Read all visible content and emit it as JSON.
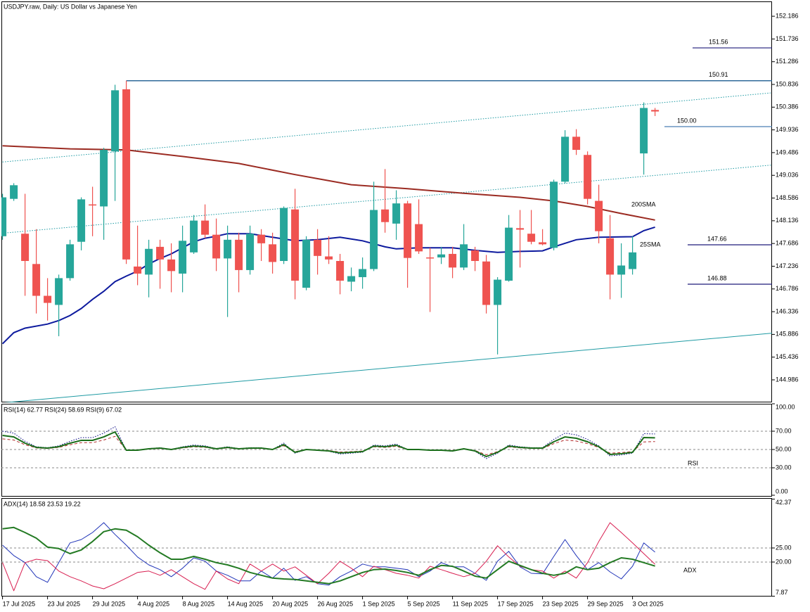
{
  "chart_data": [
    {
      "type": "candlestick",
      "title": "USDJPY.raw, Daily:  US Dollar vs Japanese Yen",
      "categories": [
        "17 Jul 2025",
        null,
        null,
        null,
        "23 Jul 2025",
        null,
        null,
        null,
        "29 Jul 2025",
        null,
        null,
        null,
        "4 Aug 2025",
        null,
        null,
        null,
        "8 Aug 2025",
        null,
        null,
        null,
        "14 Aug 2025",
        null,
        null,
        null,
        "20 Aug 2025",
        null,
        null,
        null,
        "26 Aug 2025",
        null,
        null,
        null,
        "1 Sep 2025",
        null,
        null,
        null,
        "5 Sep 2025",
        null,
        null,
        null,
        "11 Sep 2025",
        null,
        null,
        null,
        "17 Sep 2025",
        null,
        null,
        null,
        "23 Sep 2025",
        null,
        null,
        null,
        "29 Sep 2025",
        null,
        null,
        null,
        "3 Oct 2025",
        null,
        null
      ],
      "xlim": [
        -0.1,
        68.4
      ],
      "ylim": [
        144.54,
        152.48
      ],
      "yticks": [
        152.186,
        151.736,
        151.286,
        150.836,
        150.386,
        149.936,
        149.486,
        149.036,
        148.586,
        148.136,
        147.686,
        147.236,
        146.786,
        146.336,
        145.886,
        145.436,
        144.986
      ],
      "up_color": "#26a69a",
      "down_color": "#ef5350",
      "open": [
        147.83,
        148.57,
        147.88,
        147.28,
        146.65,
        146.47,
        147.0,
        147.72,
        148.46,
        148.42,
        149.51,
        150.74,
        147.23,
        147.07,
        147.62,
        147.37,
        147.09,
        147.51,
        148.14,
        147.86,
        147.39,
        147.76,
        147.16,
        147.86,
        147.67,
        147.34,
        148.36,
        146.81,
        147.76,
        147.43,
        147.34,
        146.93,
        147.02,
        147.18,
        148.36,
        148.08,
        148.48,
        148.07,
        147.41,
        147.41,
        147.48,
        147.21,
        147.55,
        147.33,
        146.47,
        146.95,
        147.99,
        147.88,
        147.71,
        147.6,
        148.91,
        149.8,
        149.44,
        148.53,
        147.79,
        147.07,
        147.18,
        149.47,
        150.33
      ],
      "high": [
        148.67,
        148.88,
        148.67,
        147.97,
        147.0,
        147.07,
        147.76,
        148.6,
        148.81,
        149.58,
        150.83,
        150.91,
        148.04,
        147.76,
        147.76,
        147.69,
        148.04,
        148.25,
        148.46,
        148.18,
        148.04,
        147.9,
        148.04,
        147.97,
        147.9,
        148.42,
        148.77,
        147.83,
        147.97,
        147.83,
        147.48,
        147.21,
        147.41,
        148.91,
        149.16,
        148.74,
        148.53,
        148.56,
        147.6,
        147.62,
        147.62,
        148.07,
        147.62,
        147.46,
        147.02,
        148.25,
        148.35,
        148.35,
        147.97,
        148.95,
        149.93,
        149.95,
        149.51,
        148.85,
        148.25,
        147.69,
        147.83,
        150.48,
        150.37
      ],
      "low": [
        147.76,
        148.53,
        146.65,
        146.3,
        146.16,
        145.85,
        146.95,
        147.55,
        147.83,
        147.76,
        148.53,
        147.28,
        146.86,
        146.62,
        146.79,
        146.72,
        146.72,
        147.48,
        147.79,
        147.14,
        146.23,
        146.72,
        147.07,
        147.34,
        147.09,
        147.28,
        146.58,
        146.76,
        147.07,
        147.28,
        146.68,
        146.74,
        146.79,
        147.14,
        147.9,
        147.76,
        146.81,
        147.48,
        146.33,
        147.28,
        147.0,
        147.16,
        147.14,
        146.3,
        145.49,
        146.93,
        147.21,
        147.67,
        147.65,
        147.55,
        148.88,
        149.44,
        148.46,
        147.69,
        146.58,
        146.61,
        147.07,
        149.05,
        150.21
      ],
      "close": [
        148.6,
        148.84,
        147.34,
        146.65,
        146.51,
        147.0,
        147.67,
        148.56,
        148.45,
        149.54,
        150.72,
        147.37,
        147.09,
        147.58,
        147.37,
        147.14,
        147.74,
        148.14,
        147.86,
        147.39,
        147.76,
        147.16,
        147.88,
        147.69,
        147.32,
        148.39,
        146.95,
        147.76,
        147.44,
        147.37,
        146.95,
        147.04,
        147.18,
        148.35,
        148.11,
        148.48,
        147.4,
        147.53,
        147.4,
        147.47,
        147.21,
        147.67,
        147.34,
        146.47,
        146.97,
        148.0,
        147.96,
        147.72,
        147.67,
        148.91,
        149.8,
        149.54,
        148.57,
        147.93,
        147.07,
        147.25,
        147.51,
        150.37,
        150.3
      ],
      "overlays": [
        {
          "name": "200SMA",
          "color": "#9b2b22",
          "x": [
            0,
            6,
            11,
            16,
            21,
            26,
            31,
            36,
            41,
            46,
            49,
            52,
            55,
            58
          ],
          "values": [
            149.62,
            149.56,
            149.54,
            149.41,
            149.27,
            149.05,
            148.85,
            148.77,
            148.68,
            148.6,
            148.53,
            148.42,
            148.28,
            148.15
          ]
        },
        {
          "name": "25SMA",
          "color": "#0d1a9e",
          "x": [
            0,
            1,
            2,
            4,
            5,
            6,
            7,
            8,
            9,
            10,
            11,
            12,
            13,
            14,
            15,
            16,
            17,
            18,
            19,
            20,
            22,
            24,
            26,
            28,
            30,
            32,
            34,
            35,
            37,
            40,
            42,
            44,
            46,
            48,
            49,
            51,
            53,
            56,
            57,
            58
          ],
          "values": [
            145.7,
            145.92,
            146.01,
            146.09,
            146.16,
            146.26,
            146.4,
            146.58,
            146.74,
            146.93,
            147.04,
            147.14,
            147.28,
            147.39,
            147.48,
            147.6,
            147.72,
            147.79,
            147.83,
            147.88,
            147.88,
            147.81,
            147.74,
            147.76,
            147.81,
            147.74,
            147.62,
            147.58,
            147.6,
            147.6,
            147.55,
            147.51,
            147.53,
            147.54,
            147.62,
            147.76,
            147.81,
            147.82,
            147.94,
            148.01
          ]
        }
      ],
      "trendlines": [
        {
          "style": "dotted",
          "color": "#1e9aa3",
          "x": [
            0,
            68.4
          ],
          "values": [
            149.3,
            150.67
          ]
        },
        {
          "style": "dotted",
          "color": "#1e9aa3",
          "x": [
            0,
            68.4
          ],
          "values": [
            147.89,
            149.24
          ]
        },
        {
          "style": "solid",
          "color": "#1e9aa3",
          "x": [
            0,
            68.4
          ],
          "values": [
            144.53,
            145.91
          ]
        }
      ],
      "levels": [
        151.56,
        150.91,
        {
          "value": 150,
          "label": "150.00"
        },
        147.66,
        146.88
      ],
      "level_colors": [
        "#1f1a7a",
        "#2f6a9a",
        "#4a7fb5",
        "#1f1a7a",
        "#1f1a7a"
      ]
    },
    {
      "type": "line",
      "title": "RSI(14) 62.77 RSI(24) 58.69 RSI(9) 67.02",
      "label": "RSI",
      "label_color": "#2e7d32",
      "ylim": [
        0,
        100
      ],
      "yticks": [
        {
          "value": 100,
          "label": "100.00"
        },
        {
          "value": 70,
          "label": "70.00"
        },
        {
          "value": 50,
          "label": "50.00"
        },
        {
          "value": 30,
          "label": "30.00"
        },
        {
          "value": 0,
          "label": "0.00"
        }
      ],
      "grid": true,
      "series": [
        {
          "color": "#b22a2a",
          "style": "dashed",
          "values": [
            61.6,
            60.4,
            55.2,
            51.7,
            51.1,
            52.3,
            55.2,
            57.5,
            57.5,
            60.4,
            64.4,
            49.4,
            49.4,
            50.6,
            51.1,
            50.0,
            51.7,
            52.9,
            52.3,
            50.6,
            51.7,
            50.6,
            51.1,
            51.1,
            50.0,
            54.1,
            47.7,
            50.0,
            49.4,
            48.9,
            47.2,
            47.7,
            48.3,
            52.9,
            52.3,
            53.5,
            50.0,
            50.0,
            49.4,
            49.4,
            48.9,
            50.6,
            48.9,
            44.2,
            47.7,
            52.9,
            51.7,
            51.1,
            51.1,
            56.4,
            60.4,
            59.2,
            56.4,
            52.3,
            46.0,
            46.6,
            47.7,
            58.3,
            58.69
          ]
        },
        {
          "color": "#000080",
          "style": "dotted",
          "values": [
            70.0,
            67.9,
            59.0,
            53.0,
            52.0,
            54.0,
            59.0,
            63.0,
            63.0,
            67.9,
            75.0,
            49.0,
            49.0,
            51.0,
            52.0,
            50.0,
            53.0,
            54.9,
            54.0,
            51.0,
            53.0,
            51.0,
            52.0,
            52.0,
            50.0,
            57.0,
            46.0,
            50.0,
            49.0,
            48.1,
            45.1,
            46.0,
            47.0,
            54.9,
            54.0,
            56.0,
            50.0,
            50.0,
            49.0,
            49.0,
            48.1,
            51.0,
            48.1,
            40.0,
            46.0,
            54.9,
            53.0,
            52.0,
            52.0,
            61.1,
            67.9,
            66.0,
            61.1,
            54.0,
            43.0,
            44.0,
            46.0,
            67.3,
            67.02
          ]
        },
        {
          "color": "#1b6e1b",
          "style": "bold",
          "values": [
            65.4,
            63.8,
            56.9,
            52.3,
            51.5,
            53.1,
            56.9,
            60.0,
            60.0,
            63.8,
            69.2,
            49.2,
            49.2,
            50.8,
            51.5,
            50.0,
            52.3,
            53.8,
            53.1,
            50.8,
            52.3,
            50.8,
            51.5,
            51.5,
            50.0,
            55.4,
            46.9,
            50.0,
            49.2,
            48.5,
            46.2,
            46.9,
            47.7,
            53.8,
            53.1,
            54.6,
            50.0,
            50.0,
            49.2,
            49.2,
            48.5,
            50.8,
            48.5,
            42.3,
            46.9,
            53.8,
            52.3,
            51.5,
            51.5,
            58.5,
            63.8,
            62.3,
            58.5,
            53.1,
            44.6,
            45.4,
            46.9,
            63.1,
            62.77
          ]
        }
      ]
    },
    {
      "type": "line",
      "title": "ADX(14) 18.58 23.53 19.22",
      "label": "ADX",
      "label_color": "#2e7d32",
      "ylim": [
        7.87,
        42.37
      ],
      "yticks": [
        42.37,
        {
          "value": 25,
          "label": "25.00"
        },
        {
          "value": 20,
          "label": "20.00"
        },
        7.87
      ],
      "grid": true,
      "series": [
        {
          "color": "#2034b8",
          "style": "solid",
          "values": [
            26.0,
            22.3,
            19.8,
            14.8,
            12.8,
            19.8,
            26.8,
            28.0,
            30.5,
            34.0,
            29.8,
            26.0,
            21.8,
            19.0,
            17.3,
            14.8,
            17.8,
            21.5,
            20.3,
            16.8,
            15.3,
            13.3,
            13.3,
            16.8,
            14.3,
            17.8,
            13.5,
            14.8,
            12.3,
            11.8,
            14.8,
            16.8,
            19.3,
            18.3,
            18.3,
            17.8,
            17.3,
            14.8,
            16.8,
            19.8,
            18.3,
            18.3,
            16.0,
            13.5,
            20.3,
            23.8,
            18.3,
            16.0,
            15.8,
            22.0,
            28.0,
            22.3,
            17.3,
            19.8,
            16.5,
            14.0,
            18.5,
            26.8,
            23.53
          ]
        },
        {
          "color": "#d81e50",
          "style": "solid",
          "values": [
            19.8,
            9.8,
            19.8,
            21.0,
            20.5,
            16.8,
            14.8,
            13.3,
            11.5,
            10.5,
            12.3,
            14.3,
            16.3,
            16.8,
            15.3,
            17.3,
            14.8,
            12.3,
            10.3,
            16.8,
            14.0,
            12.3,
            19.3,
            16.8,
            19.3,
            16.8,
            18.3,
            15.3,
            12.3,
            16.0,
            20.3,
            17.8,
            14.8,
            18.5,
            17.3,
            16.0,
            15.3,
            14.3,
            18.5,
            17.3,
            16.0,
            14.8,
            16.0,
            20.3,
            25.8,
            21.8,
            18.5,
            17.3,
            16.8,
            14.3,
            16.8,
            14.3,
            19.8,
            27.3,
            34.0,
            30.5,
            26.8,
            23.0,
            19.22
          ]
        },
        {
          "color": "#237a23",
          "style": "bold",
          "values": [
            31.8,
            32.3,
            30.5,
            28.5,
            25.3,
            24.8,
            23.0,
            24.3,
            27.3,
            30.8,
            31.8,
            31.3,
            29.0,
            26.0,
            23.3,
            21.0,
            21.0,
            22.0,
            21.0,
            19.8,
            19.0,
            17.8,
            16.3,
            15.3,
            14.3,
            14.0,
            13.8,
            13.3,
            12.8,
            12.3,
            13.3,
            14.8,
            16.3,
            17.3,
            17.5,
            17.0,
            16.3,
            15.3,
            17.3,
            18.8,
            18.5,
            16.8,
            15.0,
            14.3,
            17.3,
            20.3,
            18.8,
            17.3,
            16.0,
            15.3,
            16.0,
            18.3,
            17.3,
            17.8,
            19.8,
            21.5,
            21.0,
            19.8,
            18.58
          ]
        }
      ]
    }
  ]
}
